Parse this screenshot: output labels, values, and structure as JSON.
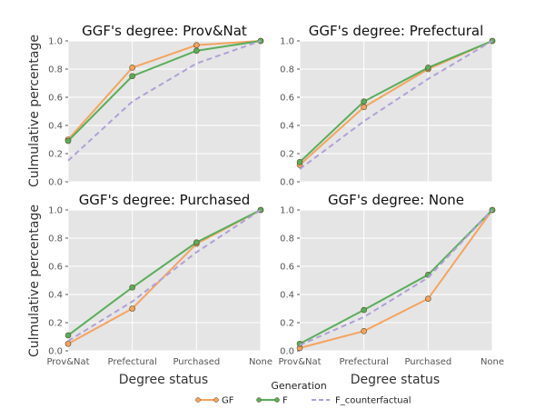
{
  "chart_data": {
    "type": "line",
    "shared_xlabel": "Degree status",
    "shared_ylabel": "Culmulative percentage",
    "categories": [
      "Prov&Nat",
      "Prefectural",
      "Purchased",
      "None"
    ],
    "yticks": [
      "0.0",
      "0.2",
      "0.4",
      "0.6",
      "0.8",
      "1.0"
    ],
    "ylim": [
      0,
      1
    ],
    "grid": true,
    "legend": {
      "title": "Generation",
      "placement": "bottom-center",
      "entries": [
        {
          "name": "GF",
          "color": "#f4a460",
          "style": "solid-marker"
        },
        {
          "name": "F",
          "color": "#5aad5a",
          "style": "solid-marker"
        },
        {
          "name": "F_counterfactual",
          "color": "#b0a0d8",
          "style": "dashed"
        }
      ]
    },
    "panels": [
      {
        "title": "GGF's degree: Prov&Nat",
        "series": [
          {
            "name": "GF",
            "values": [
              0.3,
              0.81,
              0.97,
              1.0
            ]
          },
          {
            "name": "F",
            "values": [
              0.29,
              0.75,
              0.93,
              1.0
            ]
          },
          {
            "name": "F_counterfactual",
            "values": [
              0.15,
              0.57,
              0.84,
              1.0
            ]
          }
        ]
      },
      {
        "title": "GGF's degree: Prefectural",
        "series": [
          {
            "name": "GF",
            "values": [
              0.12,
              0.53,
              0.8,
              1.0
            ]
          },
          {
            "name": "F",
            "values": [
              0.14,
              0.57,
              0.81,
              1.0
            ]
          },
          {
            "name": "F_counterfactual",
            "values": [
              0.09,
              0.43,
              0.73,
              1.0
            ]
          }
        ]
      },
      {
        "title": "GGF's degree: Purchased",
        "series": [
          {
            "name": "GF",
            "values": [
              0.05,
              0.3,
              0.76,
              1.0
            ]
          },
          {
            "name": "F",
            "values": [
              0.11,
              0.45,
              0.77,
              1.0
            ]
          },
          {
            "name": "F_counterfactual",
            "values": [
              0.07,
              0.35,
              0.7,
              1.0
            ]
          }
        ]
      },
      {
        "title": "GGF's degree: None",
        "series": [
          {
            "name": "GF",
            "values": [
              0.02,
              0.14,
              0.37,
              1.0
            ]
          },
          {
            "name": "F",
            "values": [
              0.05,
              0.29,
              0.54,
              1.0
            ]
          },
          {
            "name": "F_counterfactual",
            "values": [
              0.04,
              0.24,
              0.52,
              1.0
            ]
          }
        ]
      }
    ]
  }
}
